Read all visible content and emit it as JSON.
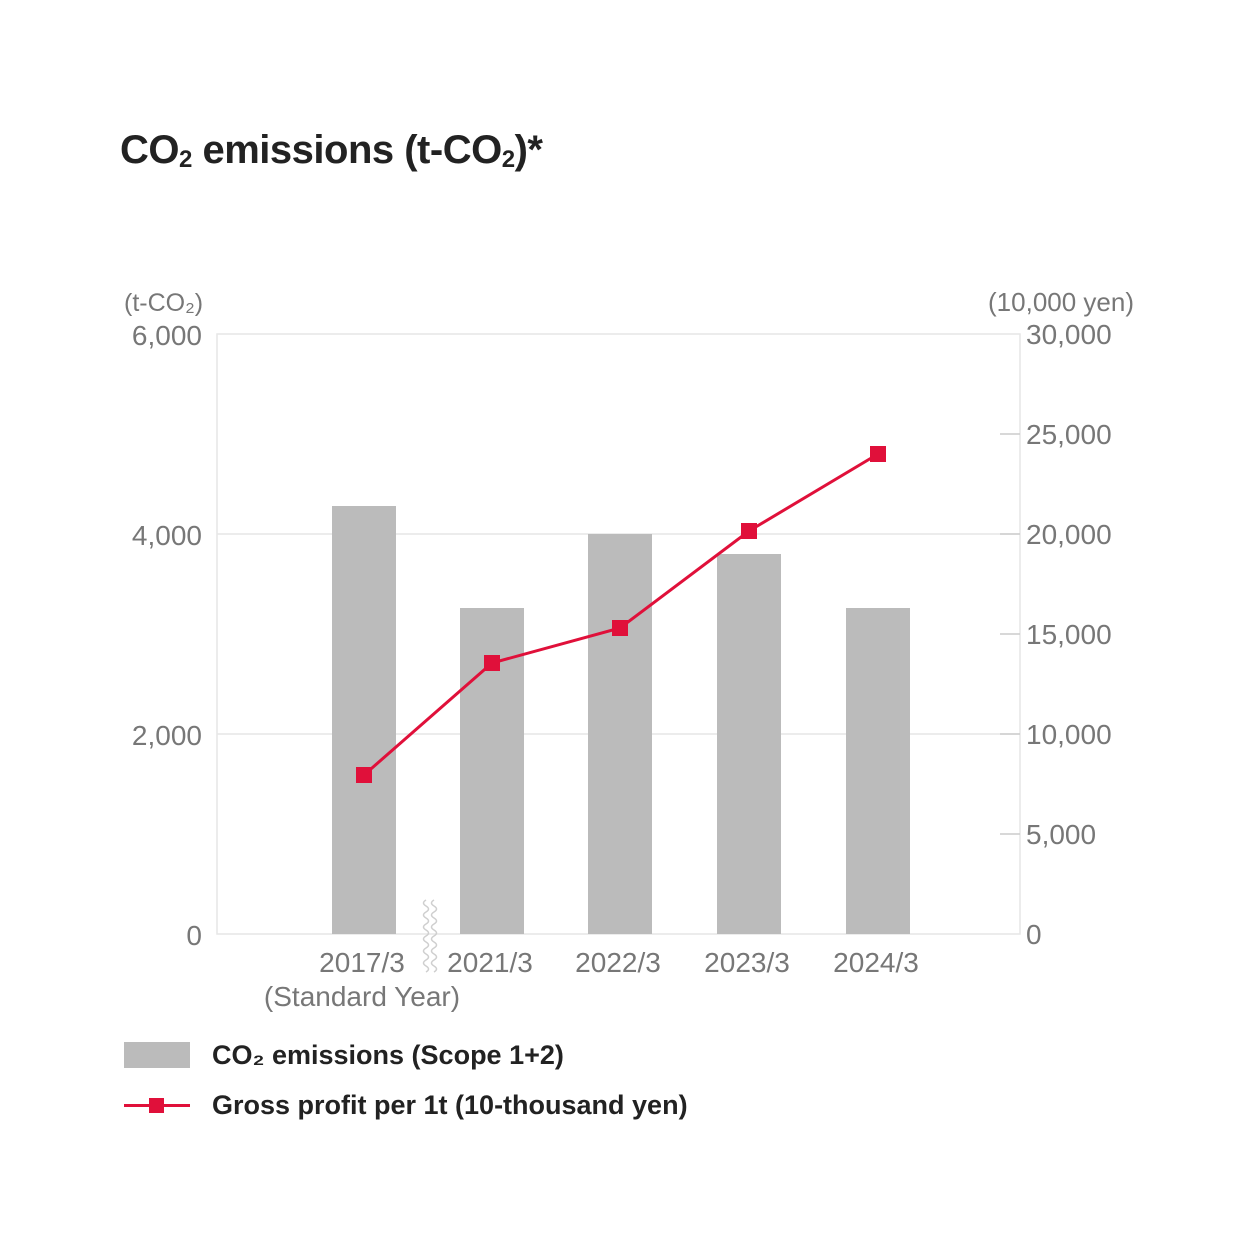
{
  "title": {
    "prefix": "CO",
    "sub": "2",
    "suffix": " emissions (t-CO",
    "sub2": "2",
    "end": ")*"
  },
  "chart_data": {
    "type": "bar",
    "categories": [
      "2017/3",
      "2021/3",
      "2022/3",
      "2023/3",
      "2024/3"
    ],
    "category_sublabels": [
      "(Standard Year)",
      "",
      "",
      "",
      ""
    ],
    "left_axis": {
      "unit": "(t-CO₂)",
      "range": [
        0,
        6000
      ],
      "ticks": [
        "0",
        "2,000",
        "4,000",
        "6,000"
      ]
    },
    "right_axis": {
      "unit": "(10,000 yen)",
      "range": [
        0,
        30000
      ],
      "ticks": [
        "0",
        "5,000",
        "10,000",
        "15,000",
        "20,000",
        "25,000",
        "30,000"
      ]
    },
    "series": [
      {
        "name": "CO₂ emissions (Scope 1+2)",
        "type": "bar",
        "axis": "left",
        "values": [
          4280,
          3260,
          4000,
          3800,
          3260
        ],
        "color": "#bbbbbb"
      },
      {
        "name": "Gross profit per 1t (10-thousand yen)",
        "type": "line",
        "axis": "right",
        "values": [
          7950,
          13550,
          15300,
          20150,
          24000
        ],
        "color": "#e0103a"
      }
    ],
    "axis_break_after": "2017/3",
    "grid": true,
    "legend_position": "bottom-left"
  },
  "legend": [
    {
      "label": "CO₂ emissions (Scope 1+2)",
      "kind": "bar"
    },
    {
      "label": "Gross profit per 1t (10-thousand yen)",
      "kind": "line"
    }
  ]
}
